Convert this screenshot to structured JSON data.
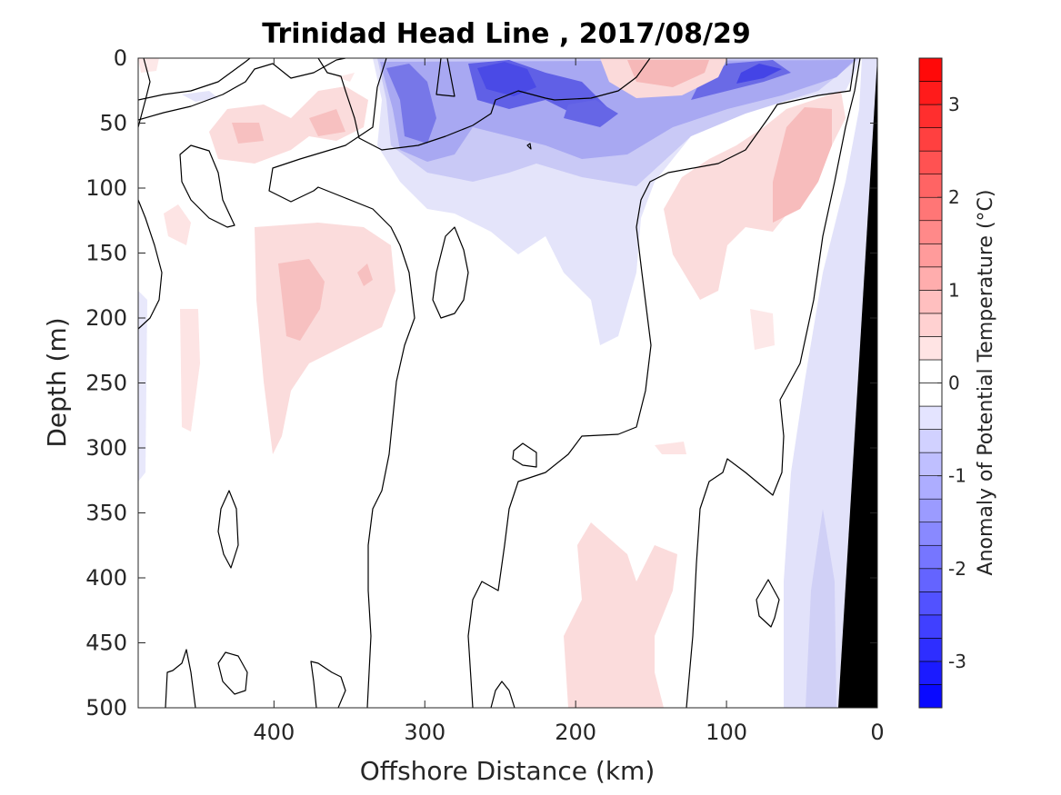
{
  "chart_data": {
    "type": "heatmap",
    "title": "Trinidad Head Line , 2017/08/29",
    "xlabel": "Offshore Distance (km)",
    "ylabel": "Depth (m)",
    "xlim": [
      490,
      0
    ],
    "ylim": [
      500,
      0
    ],
    "x_reversed": true,
    "y_reversed": true,
    "x_ticks": [
      400,
      300,
      200,
      100,
      0
    ],
    "y_ticks": [
      0,
      50,
      100,
      150,
      200,
      250,
      300,
      350,
      400,
      450,
      500
    ],
    "colorbar": {
      "label": "Anomaly of Potential Temperature (°C)",
      "range": [
        -3.5,
        3.5
      ],
      "step": 0.25,
      "ticks": [
        3,
        2,
        1,
        0,
        -1,
        -2,
        -3
      ],
      "colormap": "blue-white-red",
      "negative_color": "#0000ff",
      "zero_color": "#ffffff",
      "positive_color": "#ff0000"
    },
    "bathymetry_color": "#000000",
    "contour_levels": [
      0
    ],
    "features": [
      {
        "feature": "cold core",
        "x": [
          320,
          290
        ],
        "depth": [
          20,
          100
        ],
        "anomaly": -2.0
      },
      {
        "feature": "cold core",
        "x": [
          265,
          235
        ],
        "depth": [
          5,
          40
        ],
        "anomaly": -3.0
      },
      {
        "feature": "cold core",
        "x": [
          210,
          175
        ],
        "depth": [
          30,
          60
        ],
        "anomaly": -2.3
      },
      {
        "feature": "cold core",
        "x": [
          100,
          70
        ],
        "depth": [
          5,
          40
        ],
        "anomaly": -2.5
      },
      {
        "feature": "warm patch",
        "x": [
          160,
          120
        ],
        "depth": [
          0,
          25
        ],
        "anomaly": 0.8
      },
      {
        "feature": "warm patch",
        "x": [
          70,
          20
        ],
        "depth": [
          40,
          250
        ],
        "anomaly": 0.7
      },
      {
        "feature": "warm patch",
        "x": [
          400,
          330
        ],
        "depth": [
          130,
          250
        ],
        "anomaly": 0.6
      },
      {
        "feature": "warm patch",
        "x": [
          210,
          150
        ],
        "depth": [
          350,
          500
        ],
        "anomaly": 0.4
      },
      {
        "feature": "warm patch",
        "x": [
          470,
          390
        ],
        "depth": [
          30,
          90
        ],
        "anomaly": 0.5
      },
      {
        "feature": "cool band",
        "x": [
          50,
          25
        ],
        "depth": [
          100,
          500
        ],
        "anomaly": -0.5
      }
    ]
  }
}
